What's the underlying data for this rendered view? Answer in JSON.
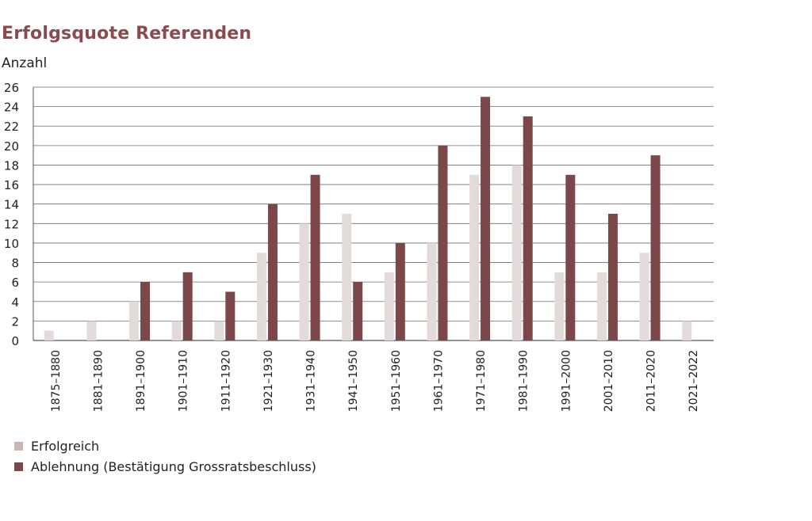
{
  "chart_data": {
    "type": "bar",
    "title": "Erfolgsquote Referenden",
    "ylabel": "Anzahl",
    "xlabel": "",
    "ylim": [
      0,
      26
    ],
    "yticks": [
      0,
      2,
      4,
      6,
      8,
      10,
      12,
      14,
      16,
      18,
      20,
      22,
      24,
      26
    ],
    "grid": true,
    "legend_position": "bottom-left",
    "categories": [
      "1875–1880",
      "1881–1890",
      "1891–1900",
      "1901–1910",
      "1911–1920",
      "1921–1930",
      "1931–1940",
      "1941–1950",
      "1951–1960",
      "1961–1970",
      "1971–1980",
      "1981–1990",
      "1991–2000",
      "2001–2010",
      "2011–2020",
      "2021–2022"
    ],
    "series": [
      {
        "name": "Erfolgreich",
        "color": "#e3dbd9",
        "legend_color": "#c8b7b5",
        "values": [
          1,
          2,
          4,
          2,
          2,
          9,
          12,
          13,
          7,
          10,
          17,
          18,
          7,
          7,
          9,
          2
        ]
      },
      {
        "name": "Ablehnung (Bestätigung Grossratsbeschluss)",
        "color": "#7b4749",
        "legend_color": "#7b4749",
        "values": [
          0,
          0,
          6,
          7,
          5,
          14,
          17,
          6,
          10,
          20,
          25,
          23,
          17,
          13,
          19,
          0
        ]
      }
    ]
  }
}
